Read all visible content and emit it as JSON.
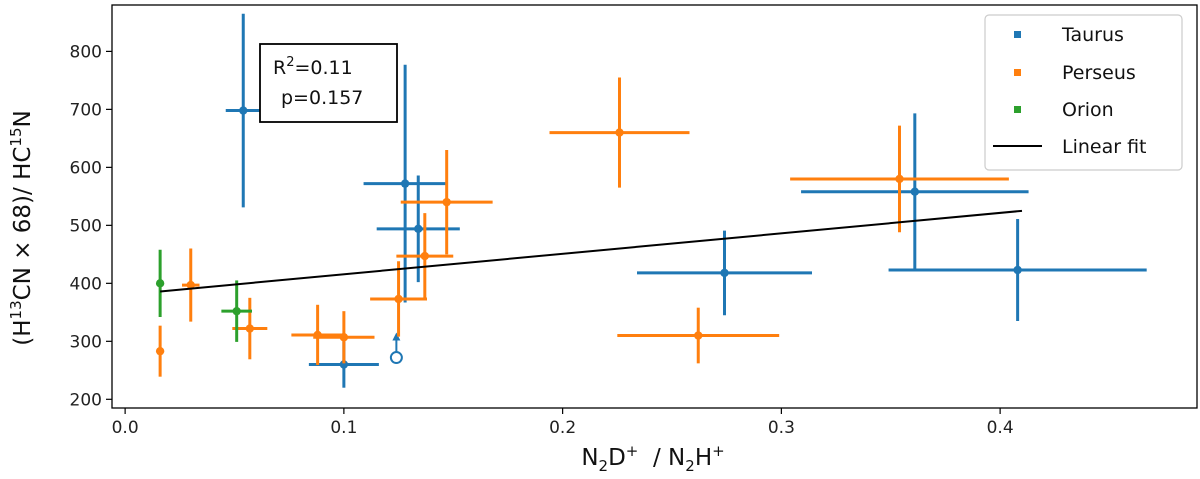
{
  "chart_data": {
    "type": "scatter",
    "xlabel": {
      "pre": "N",
      "sub1": "2",
      "mid": "D",
      "sup1": "+",
      "sep": "  / N",
      "sub2": "2",
      "post": "H",
      "sup2": "+"
    },
    "ylabel": {
      "pre": "(H",
      "sup1": "13",
      "mid": "CN × 68)/ HC",
      "sup2": "15",
      "post": "N"
    },
    "xlim": [
      -0.006,
      0.49
    ],
    "ylim": [
      185,
      880
    ],
    "xticks": [
      0.0,
      0.1,
      0.2,
      0.3,
      0.4
    ],
    "xtick_labels": [
      "0.0",
      "0.1",
      "0.2",
      "0.3",
      "0.4"
    ],
    "yticks": [
      200,
      300,
      400,
      500,
      600,
      700,
      800
    ],
    "ytick_labels": [
      "200",
      "300",
      "400",
      "500",
      "600",
      "700",
      "800"
    ],
    "colors": {
      "Taurus": "#1f77b4",
      "Perseus": "#ff7f0e",
      "Orion": "#2ca02c",
      "fit": "#000000"
    },
    "series": [
      {
        "name": "Taurus",
        "points": [
          {
            "x": 0.054,
            "y": 698,
            "xerr": 0.008,
            "yerr": 167
          },
          {
            "x": 0.128,
            "y": 572,
            "xerr": 0.019,
            "yerr": 205
          },
          {
            "x": 0.134,
            "y": 494,
            "xerr": 0.019,
            "yerr": 92
          },
          {
            "x": 0.1,
            "y": 260,
            "xerr": 0.016,
            "yerr": 40
          },
          {
            "x": 0.274,
            "y": 418,
            "xerr": 0.04,
            "yerr": 73
          },
          {
            "x": 0.361,
            "y": 558,
            "xerr": 0.052,
            "yerr": 135
          },
          {
            "x": 0.408,
            "y": 423,
            "xerr": 0.059,
            "yerr": 88
          }
        ],
        "limits": [
          {
            "x": 0.124,
            "y": 272,
            "direction": "up"
          }
        ]
      },
      {
        "name": "Perseus",
        "points": [
          {
            "x": 0.016,
            "y": 283,
            "xerr": 0.0,
            "yerr": 44
          },
          {
            "x": 0.03,
            "y": 397,
            "xerr": 0.004,
            "yerr": 63
          },
          {
            "x": 0.057,
            "y": 322,
            "xerr": 0.008,
            "yerr": 53
          },
          {
            "x": 0.088,
            "y": 311,
            "xerr": 0.012,
            "yerr": 52
          },
          {
            "x": 0.1,
            "y": 307,
            "xerr": 0.014,
            "yerr": 45
          },
          {
            "x": 0.125,
            "y": 373,
            "xerr": 0.013,
            "yerr": 65
          },
          {
            "x": 0.137,
            "y": 447,
            "xerr": 0.013,
            "yerr": 74
          },
          {
            "x": 0.147,
            "y": 540,
            "xerr": 0.021,
            "yerr": 90
          },
          {
            "x": 0.226,
            "y": 660,
            "xerr": 0.032,
            "yerr": 95
          },
          {
            "x": 0.262,
            "y": 310,
            "xerr": 0.037,
            "yerr": 48
          },
          {
            "x": 0.354,
            "y": 580,
            "xerr": 0.05,
            "yerr": 92
          }
        ]
      },
      {
        "name": "Orion",
        "points": [
          {
            "x": 0.016,
            "y": 400,
            "xerr": 0.0,
            "yerr": 58
          },
          {
            "x": 0.051,
            "y": 352,
            "xerr": 0.007,
            "yerr": 53
          }
        ]
      }
    ],
    "fit": {
      "name": "Linear fit",
      "x": [
        0.016,
        0.41
      ],
      "y": [
        386,
        525
      ]
    },
    "annotation": {
      "r2_base": "R",
      "r2_sup": "2",
      "r2_value": "=0.11",
      "p_text": "p=0.157"
    },
    "legend": {
      "location": "upper right",
      "entries": [
        {
          "label": "Taurus",
          "kind": "marker",
          "color": "#1f77b4"
        },
        {
          "label": "Perseus",
          "kind": "marker",
          "color": "#ff7f0e"
        },
        {
          "label": "Orion",
          "kind": "marker",
          "color": "#2ca02c"
        },
        {
          "label": "Linear fit",
          "kind": "line",
          "color": "#000000"
        }
      ]
    }
  }
}
